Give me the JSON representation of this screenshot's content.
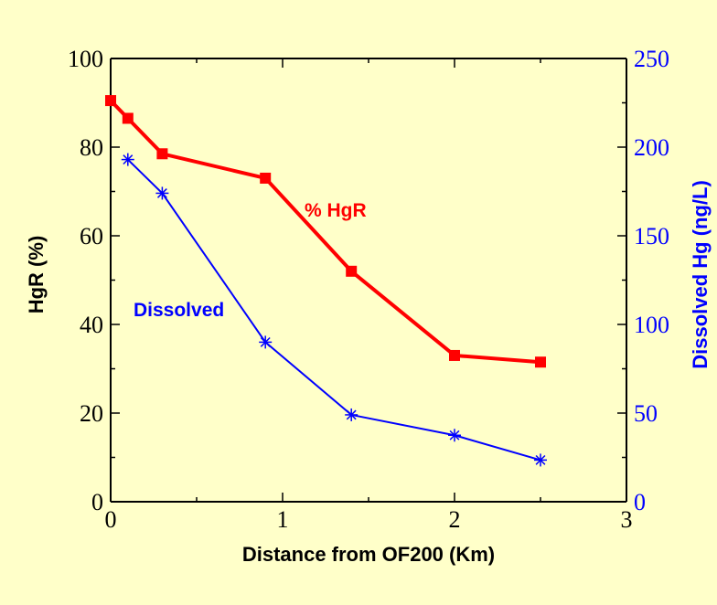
{
  "colors": {
    "background": "#ffffc9",
    "axis": "#000000",
    "hgr_series": "#ff0000",
    "dissolved_series": "#0000ff"
  },
  "chart_data": {
    "type": "line",
    "title": "",
    "xlabel": "Distance from OF200 (Km)",
    "ylabel_left": "HgR (%)",
    "ylabel_right": "Dissolved Hg  (ng/L)",
    "xlim": [
      0,
      3
    ],
    "ylim_left": [
      0,
      100
    ],
    "ylim_right": [
      0,
      250
    ],
    "x_ticks": [
      "0",
      "1",
      "2",
      "3"
    ],
    "y_left_ticks": [
      "0",
      "20",
      "40",
      "60",
      "80",
      "100"
    ],
    "y_right_ticks": [
      "0",
      "50",
      "100",
      "150",
      "200",
      "250"
    ],
    "grid": false,
    "series": [
      {
        "name": "% HgR",
        "axis": "left",
        "marker": "square",
        "color": "#ff0000",
        "x": [
          0,
          0.1,
          0.3,
          0.9,
          1.4,
          2.0,
          2.5
        ],
        "y": [
          90.5,
          86.5,
          78.5,
          73,
          52,
          33,
          31.5
        ]
      },
      {
        "name": "Dissolved",
        "axis": "right",
        "marker": "asterisk",
        "color": "#0000ff",
        "x": [
          0.1,
          0.3,
          0.9,
          1.4,
          2.0,
          2.5
        ],
        "y": [
          193,
          174,
          90,
          49,
          37.5,
          23.5
        ]
      }
    ]
  }
}
